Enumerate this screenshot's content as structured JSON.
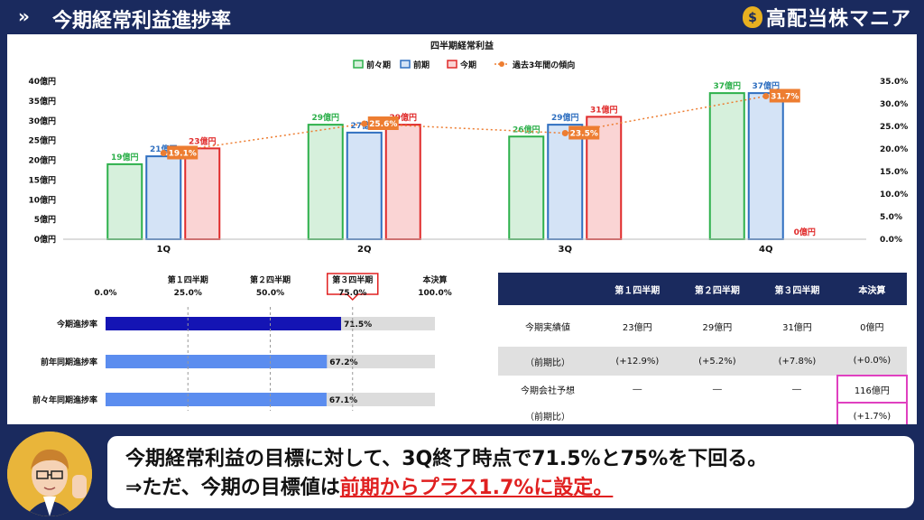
{
  "header": {
    "title": "今期経常利益進捗率",
    "brand": "高配当株マニア",
    "bag_symbol": "$"
  },
  "colors": {
    "navy": "#1a2a5e",
    "prev2": "#2db04b",
    "prev2_fill": "#d6f0dc",
    "prev": "#2f6fc0",
    "prev_fill": "#d4e3f6",
    "curr": "#e02a2a",
    "curr_fill": "#fad4d4",
    "trend": "#ed7d31",
    "progress_curr": "#1414b4",
    "progress_prev": "#5b8def",
    "progress_bg": "#dcdcdc"
  },
  "chart_data": [
    {
      "type": "bar",
      "title": "四半期経常利益",
      "categories": [
        "1Q",
        "2Q",
        "3Q",
        "4Q"
      ],
      "series": [
        {
          "name": "前々期",
          "values": [
            19,
            29,
            26,
            37
          ],
          "labels": [
            "19億円",
            "29億円",
            "26億円",
            "37億円"
          ]
        },
        {
          "name": "前期",
          "values": [
            21,
            27,
            29,
            37
          ],
          "labels": [
            "21億円",
            "27億円",
            "29億円",
            "37億円"
          ]
        },
        {
          "name": "今期",
          "values": [
            23,
            29,
            31,
            0
          ],
          "labels": [
            "23億円",
            "29億円",
            "31億円",
            "0億円"
          ]
        }
      ],
      "line_series": {
        "name": "過去3年間の傾向",
        "values": [
          19.1,
          25.6,
          23.5,
          31.7
        ],
        "labels": [
          "19.1%",
          "25.6%",
          "23.5%",
          "31.7%"
        ]
      },
      "ylim": [
        0,
        40
      ],
      "y_ticks": [
        "0億円",
        "5億円",
        "10億円",
        "15億円",
        "20億円",
        "25億円",
        "30億円",
        "35億円",
        "40億円"
      ],
      "y2lim": [
        0,
        35
      ],
      "y2_ticks": [
        "0.0%",
        "5.0%",
        "10.0%",
        "15.0%",
        "20.0%",
        "25.0%",
        "30.0%",
        "35.0%"
      ],
      "legend_position": "top"
    },
    {
      "type": "bar",
      "orientation": "horizontal",
      "categories": [
        "今期進捗率",
        "前年同期進捗率",
        "前々年同期進捗率"
      ],
      "values": [
        71.5,
        67.2,
        67.1
      ],
      "labels": [
        "71.5%",
        "67.2%",
        "67.1%"
      ],
      "xlim": [
        0,
        100
      ],
      "x_ticks": [
        "0.0%",
        "25.0%",
        "50.0%",
        "75.0%",
        "100.0%"
      ],
      "milestones": [
        "",
        "第１四半期",
        "第２四半期",
        "第３四半期",
        "本決算"
      ],
      "highlight_milestone_index": 3
    }
  ],
  "table": {
    "headers": [
      "",
      "第１四半期",
      "第２四半期",
      "第３四半期",
      "本決算"
    ],
    "rows": [
      [
        "今期実績値",
        "23億円",
        "29億円",
        "31億円",
        "0億円"
      ],
      [
        "（前期比）",
        "(+12.9%)",
        "(+5.2%)",
        "(+7.8%)",
        "(+0.0%)"
      ],
      [
        "今期会社予想",
        "―",
        "―",
        "―",
        "116億円"
      ],
      [
        "（前期比）",
        "",
        "",
        "",
        "(+1.7%)"
      ]
    ]
  },
  "speech": {
    "line1": "今期経常利益の目標に対して、3Q終了時点で71.5%と75%を下回る。",
    "line2_prefix": "⇒ただ、今期の目標値は",
    "line2_highlight": "前期からプラス1.7%に設定。"
  }
}
